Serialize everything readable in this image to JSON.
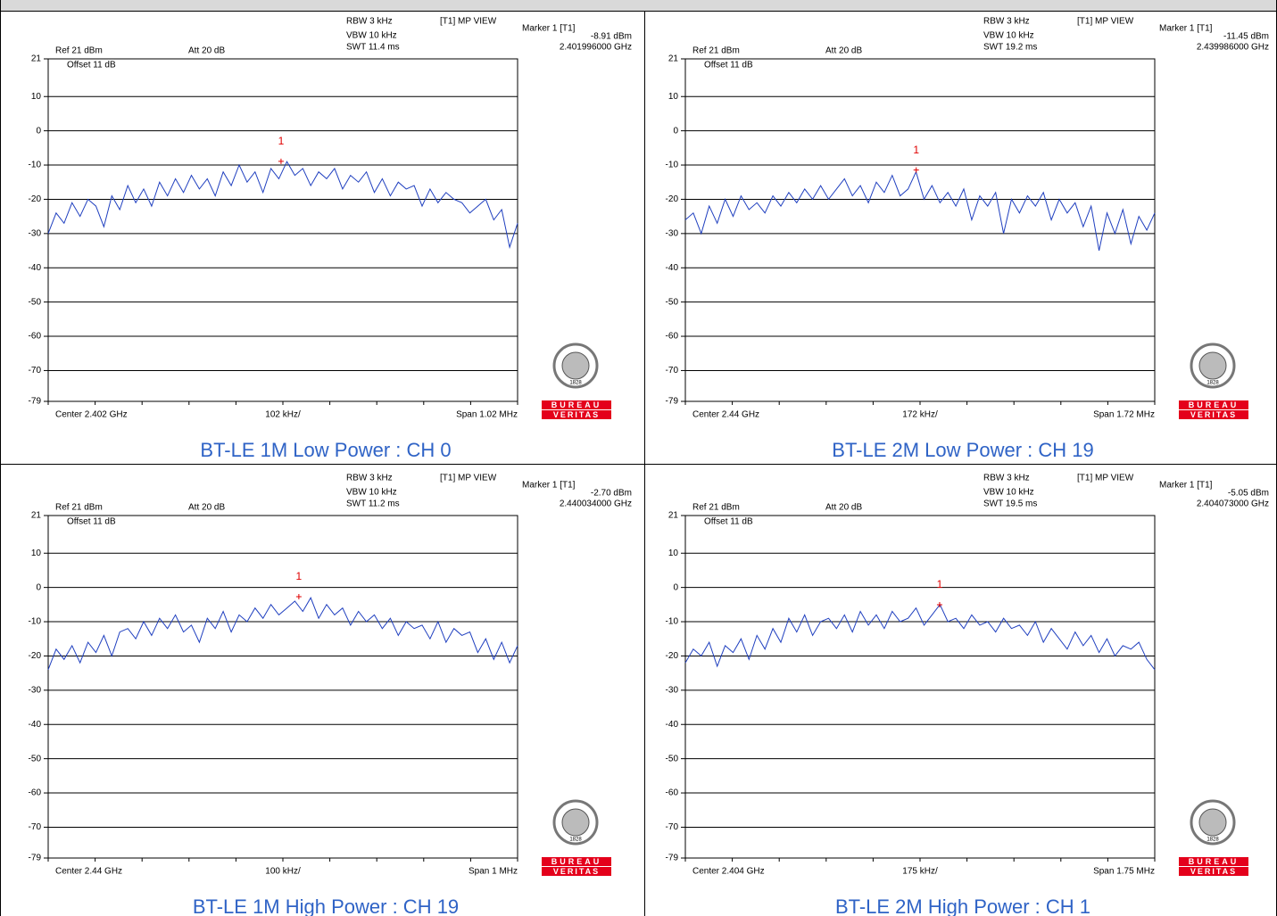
{
  "logo": {
    "top": "BUREAU",
    "bottom": "VERITAS",
    "year": "1828"
  },
  "chart_data": [
    {
      "type": "line",
      "caption": "BT-LE 1M Low Power : CH 0",
      "rbw": "RBW 3 kHz",
      "vbw": "VBW 10 kHz",
      "swt": "SWT 11.4 ms",
      "trace_label": "[T1] MP VIEW",
      "marker_title": "Marker 1 [T1]",
      "ref": "Ref 21 dBm",
      "att": "Att 20 dB",
      "offset": "Offset 11 dB",
      "center": "Center 2.402 GHz",
      "div": "102 kHz/",
      "span": "Span 1.02 MHz",
      "marker": {
        "label": "1",
        "x": 2.401996,
        "x_label": "2.401996000 GHz",
        "y": -8.91,
        "y_label": "-8.91 dBm"
      },
      "xlim": [
        2.40149,
        2.40251
      ],
      "ylim": [
        -79,
        21
      ],
      "yticks": [
        21,
        10,
        0,
        -10,
        -20,
        -30,
        -40,
        -50,
        -60,
        -70,
        -79
      ],
      "grid": true,
      "color": "#1f3fbf",
      "values": [
        -30,
        -24,
        -27,
        -21,
        -25,
        -20,
        -22,
        -28,
        -19,
        -23,
        -16,
        -21,
        -17,
        -22,
        -15,
        -19,
        -14,
        -18,
        -13,
        -17,
        -14,
        -19,
        -12,
        -16,
        -10,
        -15,
        -12,
        -18,
        -11,
        -14,
        -9,
        -13,
        -11,
        -16,
        -12,
        -14,
        -11,
        -17,
        -13,
        -15,
        -12,
        -18,
        -14,
        -19,
        -15,
        -17,
        -16,
        -22,
        -17,
        -21,
        -18,
        -20,
        -21,
        -24,
        -22,
        -20,
        -26,
        -23,
        -34,
        -27
      ]
    },
    {
      "type": "line",
      "caption": "BT-LE 2M Low Power : CH 19",
      "rbw": "RBW 3 kHz",
      "vbw": "VBW 10 kHz",
      "swt": "SWT 19.2 ms",
      "trace_label": "[T1] MP VIEW",
      "marker_title": "Marker 1 [T1]",
      "ref": "Ref 21 dBm",
      "att": "Att 20 dB",
      "offset": "Offset 11 dB",
      "center": "Center 2.44 GHz",
      "div": "172 kHz/",
      "span": "Span 1.72 MHz",
      "marker": {
        "label": "1",
        "x": 2.439986,
        "x_label": "2.439986000 GHz",
        "y": -11.45,
        "y_label": "-11.45 dBm"
      },
      "xlim": [
        2.43914,
        2.44086
      ],
      "ylim": [
        -79,
        21
      ],
      "yticks": [
        21,
        10,
        0,
        -10,
        -20,
        -30,
        -40,
        -50,
        -60,
        -70,
        -79
      ],
      "grid": true,
      "color": "#1f3fbf",
      "values": [
        -26,
        -24,
        -30,
        -22,
        -27,
        -20,
        -25,
        -19,
        -23,
        -21,
        -24,
        -19,
        -22,
        -18,
        -21,
        -17,
        -20,
        -16,
        -20,
        -17,
        -14,
        -19,
        -16,
        -21,
        -15,
        -18,
        -13,
        -19,
        -17,
        -12,
        -20,
        -16,
        -21,
        -18,
        -22,
        -17,
        -26,
        -19,
        -22,
        -18,
        -30,
        -20,
        -24,
        -19,
        -22,
        -18,
        -26,
        -20,
        -24,
        -21,
        -28,
        -22,
        -35,
        -24,
        -30,
        -23,
        -33,
        -25,
        -29,
        -24
      ]
    },
    {
      "type": "line",
      "caption": "BT-LE 1M High Power : CH 19",
      "rbw": "RBW 3 kHz",
      "vbw": "VBW 10 kHz",
      "swt": "SWT 11.2 ms",
      "trace_label": "[T1] MP VIEW",
      "marker_title": "Marker 1 [T1]",
      "ref": "Ref 21 dBm",
      "att": "Att 20 dB",
      "offset": "Offset 11 dB",
      "center": "Center 2.44 GHz",
      "div": "100 kHz/",
      "span": "Span 1 MHz",
      "marker": {
        "label": "1",
        "x": 2.440034,
        "x_label": "2.440034000 GHz",
        "y": -2.7,
        "y_label": "-2.70 dBm"
      },
      "xlim": [
        2.4395,
        2.4405
      ],
      "ylim": [
        -79,
        21
      ],
      "yticks": [
        21,
        10,
        0,
        -10,
        -20,
        -30,
        -40,
        -50,
        -60,
        -70,
        -79
      ],
      "grid": true,
      "color": "#1f3fbf",
      "values": [
        -24,
        -18,
        -21,
        -17,
        -22,
        -16,
        -19,
        -14,
        -20,
        -13,
        -12,
        -15,
        -10,
        -14,
        -9,
        -12,
        -8,
        -13,
        -11,
        -16,
        -9,
        -12,
        -7,
        -13,
        -8,
        -10,
        -6,
        -9,
        -5,
        -8,
        -6,
        -4,
        -7,
        -3,
        -9,
        -5,
        -8,
        -6,
        -11,
        -7,
        -10,
        -8,
        -12,
        -9,
        -14,
        -10,
        -12,
        -11,
        -15,
        -10,
        -16,
        -12,
        -14,
        -13,
        -19,
        -15,
        -21,
        -16,
        -22,
        -17
      ]
    },
    {
      "type": "line",
      "caption": "BT-LE 2M High Power : CH 1",
      "rbw": "RBW 3 kHz",
      "vbw": "VBW 10 kHz",
      "swt": "SWT 19.5 ms",
      "trace_label": "[T1] MP VIEW",
      "marker_title": "Marker 1 [T1]",
      "ref": "Ref 21 dBm",
      "att": "Att 20 dB",
      "offset": "Offset 11 dB",
      "center": "Center 2.404 GHz",
      "div": "175 kHz/",
      "span": "Span 1.75 MHz",
      "marker": {
        "label": "1",
        "x": 2.404073,
        "x_label": "2.404073000 GHz",
        "y": -5.05,
        "y_label": "-5.05 dBm"
      },
      "xlim": [
        2.403125,
        2.404875
      ],
      "ylim": [
        -79,
        21
      ],
      "yticks": [
        21,
        10,
        0,
        -10,
        -20,
        -30,
        -40,
        -50,
        -60,
        -70,
        -79
      ],
      "grid": true,
      "color": "#1f3fbf",
      "values": [
        -22,
        -18,
        -20,
        -16,
        -23,
        -17,
        -19,
        -15,
        -21,
        -14,
        -18,
        -12,
        -16,
        -9,
        -13,
        -8,
        -14,
        -10,
        -9,
        -12,
        -8,
        -13,
        -7,
        -11,
        -8,
        -12,
        -7,
        -10,
        -9,
        -6,
        -11,
        -8,
        -5,
        -10,
        -9,
        -12,
        -8,
        -11,
        -10,
        -13,
        -9,
        -12,
        -11,
        -14,
        -10,
        -16,
        -12,
        -15,
        -18,
        -13,
        -17,
        -14,
        -19,
        -15,
        -20,
        -17,
        -18,
        -16,
        -21,
        -24
      ]
    }
  ]
}
